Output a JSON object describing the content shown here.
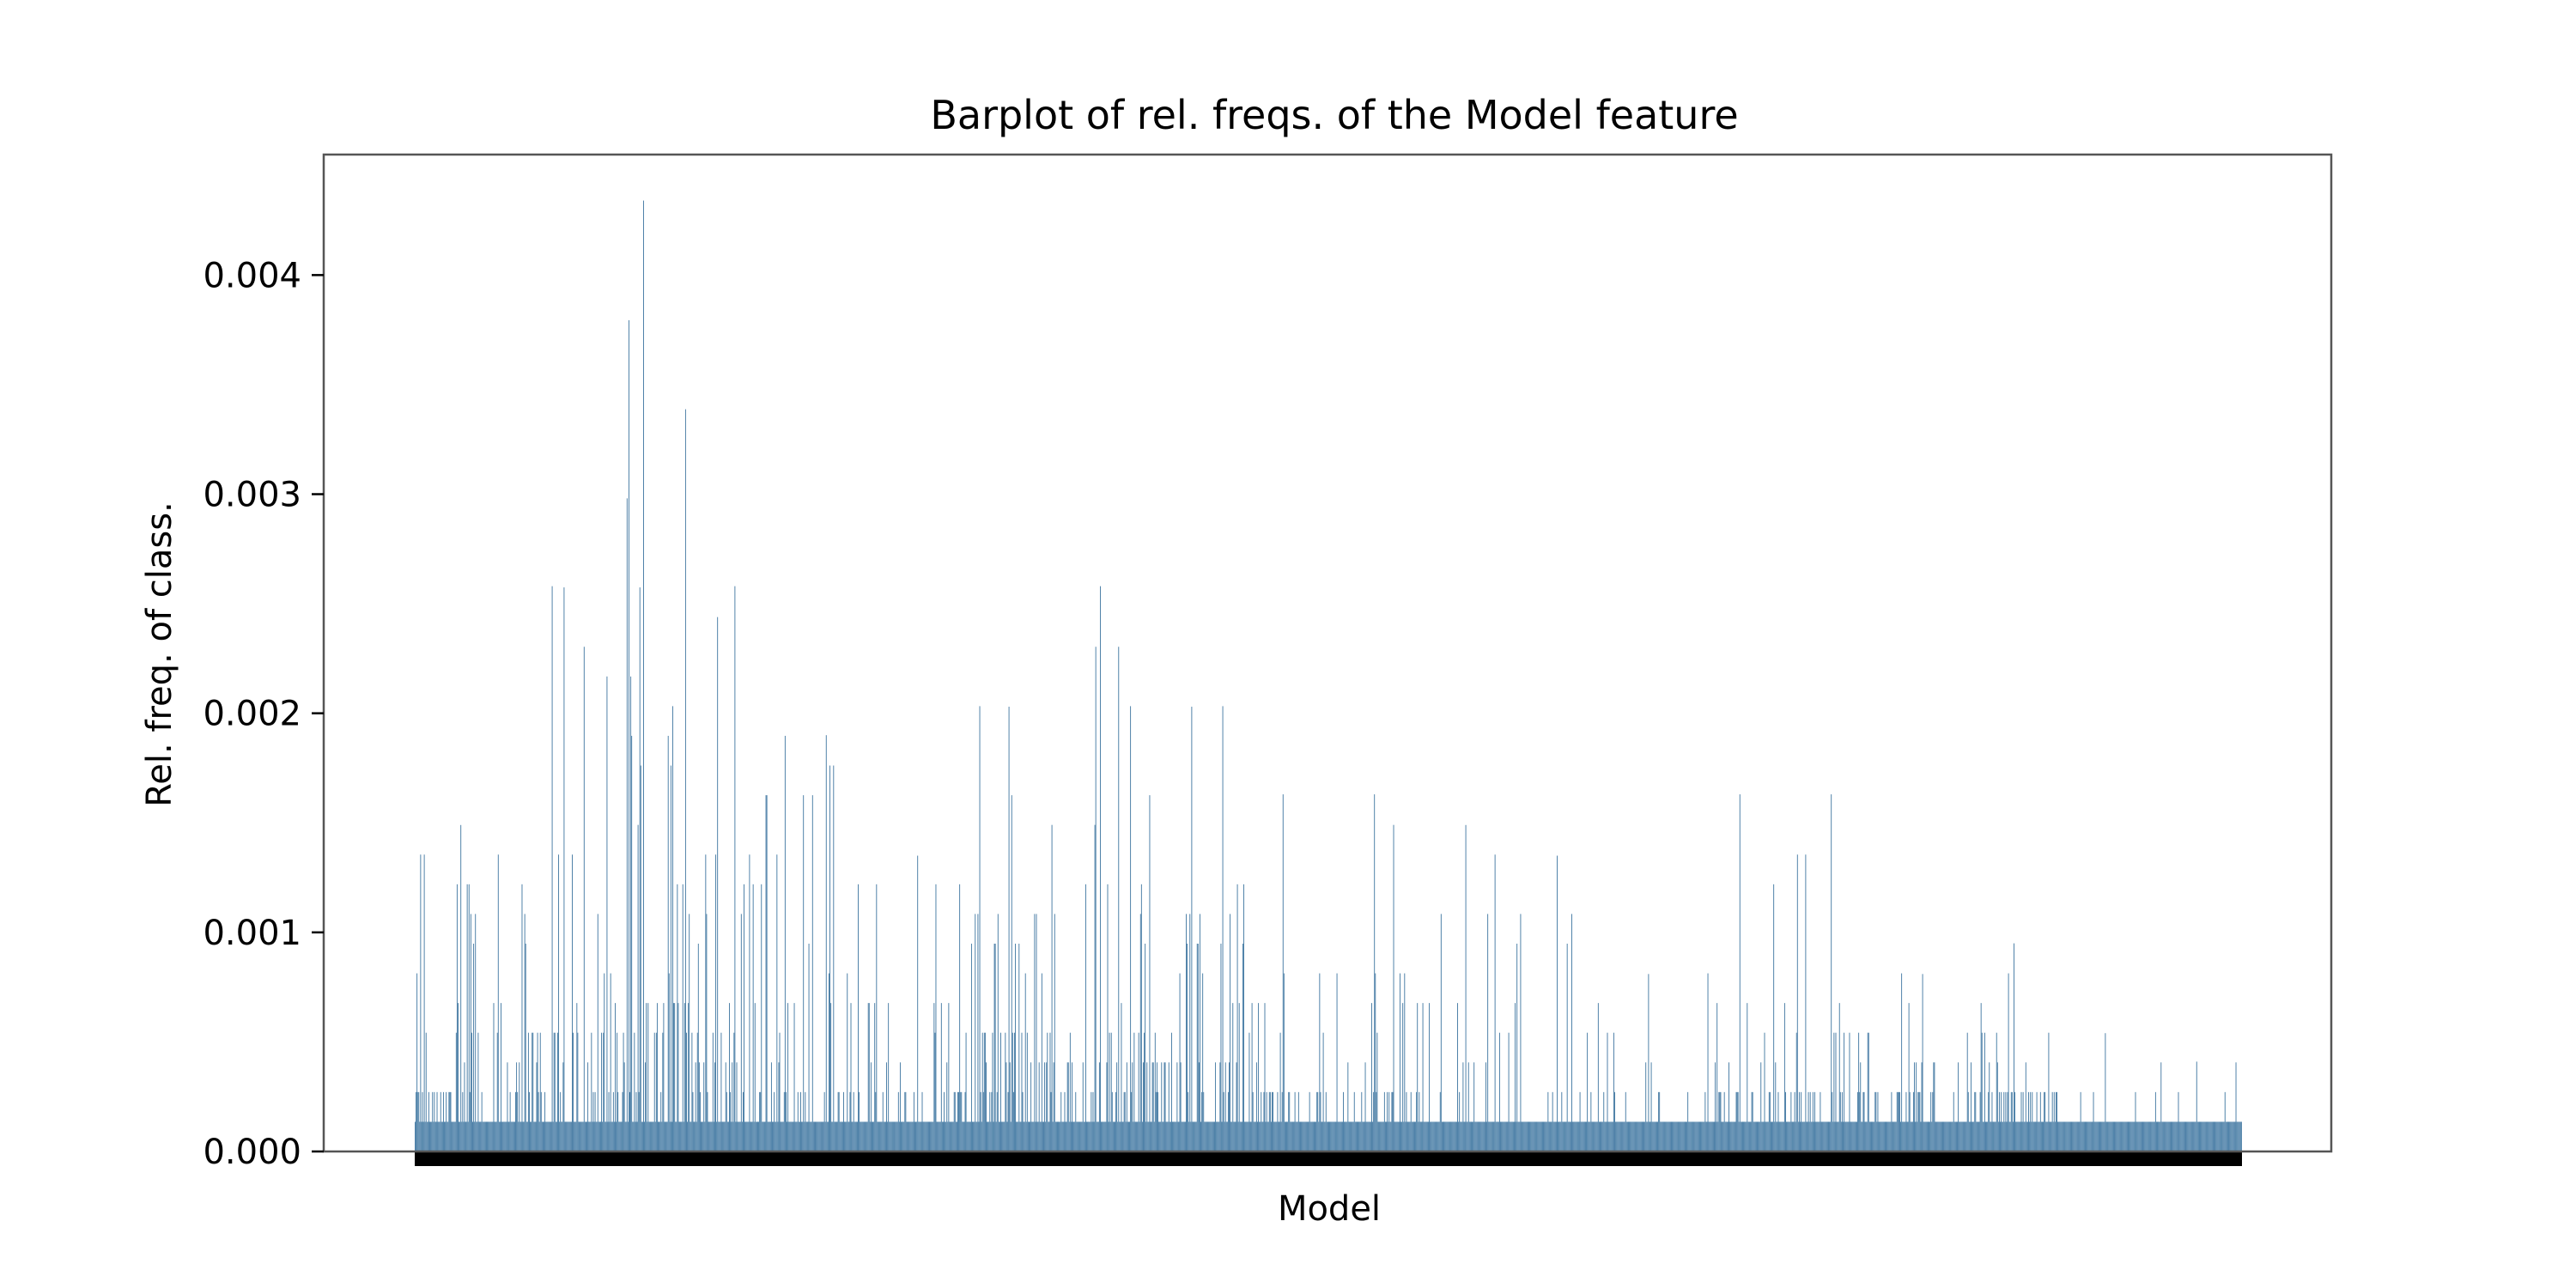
{
  "chart_data": {
    "type": "bar",
    "title": "Barplot of rel. freqs. of the Model feature",
    "xlabel": "Model",
    "ylabel": "Rel. freq. of class.",
    "ylim": [
      0,
      0.00455
    ],
    "yticks": [
      0.0,
      0.001,
      0.002,
      0.003,
      0.004
    ],
    "ytick_labels": [
      "0.000",
      "0.001",
      "0.002",
      "0.003",
      "0.004"
    ],
    "grid": false,
    "legend": "none",
    "bar_color": "#4a7ea6",
    "x_tick_mark_color": "#000000",
    "category_count": 2000,
    "x_tick_labels_note": "category tick labels are rendered as a dense black band and are unreadable",
    "series": [
      {
        "values_profile": [
          {
            "segment": 1,
            "peak": 0.00149,
            "common": 0.00027
          },
          {
            "segment": 2,
            "peak": 0.00258,
            "common": 0.00054
          },
          {
            "segment": 3,
            "peak": 0.00434,
            "common": 0.00067
          },
          {
            "segment": 4,
            "peak": 0.00258,
            "common": 0.00054
          },
          {
            "segment": 5,
            "peak": 0.0019,
            "common": 0.00027
          },
          {
            "segment": 6,
            "peak": 0.00135,
            "common": 0.00027
          },
          {
            "segment": 7,
            "peak": 0.00203,
            "common": 0.00054
          },
          {
            "segment": 8,
            "peak": 0.00258,
            "common": 0.00054
          },
          {
            "segment": 9,
            "peak": 0.00203,
            "common": 0.00041
          },
          {
            "segment": 10,
            "peak": 0.00163,
            "common": 0.00027
          },
          {
            "segment": 11,
            "peak": 0.00163,
            "common": 0.00027
          },
          {
            "segment": 12,
            "peak": 0.00149,
            "common": 0.00014
          },
          {
            "segment": 13,
            "peak": 0.00135,
            "common": 0.00014
          },
          {
            "segment": 14,
            "peak": 0.00081,
            "common": 0.00014
          },
          {
            "segment": 15,
            "peak": 0.00163,
            "common": 0.00027
          },
          {
            "segment": 16,
            "peak": 0.00163,
            "common": 0.00027
          },
          {
            "segment": 17,
            "peak": 0.00081,
            "common": 0.00027
          },
          {
            "segment": 18,
            "peak": 0.00095,
            "common": 0.00027
          },
          {
            "segment": 19,
            "peak": 0.00054,
            "common": 0.00014
          },
          {
            "segment": 20,
            "peak": 0.00041,
            "common": 0.00014
          }
        ]
      }
    ]
  }
}
